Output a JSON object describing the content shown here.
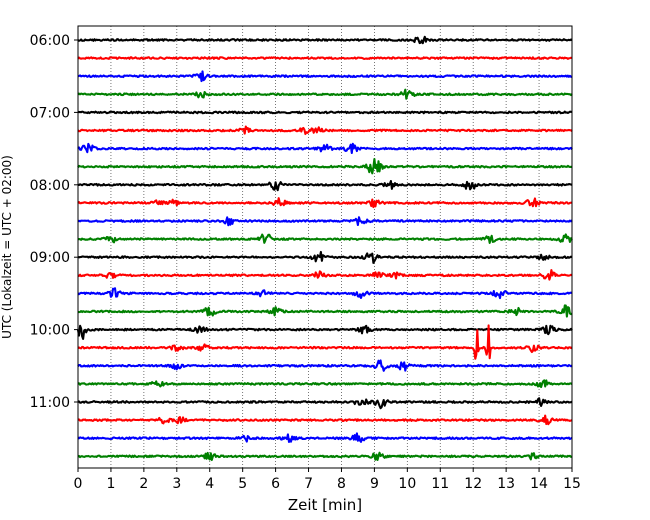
{
  "chart_data": {
    "type": "line",
    "title": "",
    "xlabel": "Zeit  [min]",
    "ylabel": "UTC (Lokalzeit = UTC + 02:00)",
    "xlim": [
      0,
      15
    ],
    "x_ticks": [
      0,
      1,
      2,
      3,
      4,
      5,
      6,
      7,
      8,
      9,
      10,
      11,
      12,
      13,
      14,
      15
    ],
    "grid": "vertical dotted",
    "trace_interval_minutes": 15,
    "y_ticks": [
      "06:00",
      "07:00",
      "08:00",
      "09:00",
      "10:00",
      "11:00"
    ],
    "series_colors": [
      "#000000",
      "#ff0000",
      "#0000ff",
      "#008000"
    ],
    "rows": [
      {
        "start": "06:00",
        "events": [
          {
            "t": 10.4,
            "a": 0.5
          }
        ]
      },
      {
        "start": "06:15",
        "events": []
      },
      {
        "start": "06:30",
        "events": [
          {
            "t": 3.7,
            "a": 0.6
          }
        ]
      },
      {
        "start": "06:45",
        "events": [
          {
            "t": 3.7,
            "a": 0.4
          },
          {
            "t": 10.0,
            "a": 0.5
          }
        ]
      },
      {
        "start": "07:00",
        "events": []
      },
      {
        "start": "07:15",
        "events": [
          {
            "t": 5.1,
            "a": 0.4
          },
          {
            "t": 6.9,
            "a": 0.3
          },
          {
            "t": 7.3,
            "a": 0.3
          }
        ]
      },
      {
        "start": "07:30",
        "events": [
          {
            "t": 0.3,
            "a": 0.5
          },
          {
            "t": 7.5,
            "a": 0.4
          },
          {
            "t": 8.3,
            "a": 0.6
          }
        ]
      },
      {
        "start": "07:45",
        "events": [
          {
            "t": 8.9,
            "a": 0.6
          },
          {
            "t": 9.1,
            "a": 0.5
          }
        ]
      },
      {
        "start": "08:00",
        "events": [
          {
            "t": 6.0,
            "a": 0.6
          },
          {
            "t": 9.5,
            "a": 0.4
          },
          {
            "t": 11.9,
            "a": 0.6
          }
        ]
      },
      {
        "start": "08:15",
        "events": [
          {
            "t": 2.4,
            "a": 0.3
          },
          {
            "t": 2.9,
            "a": 0.3
          },
          {
            "t": 6.1,
            "a": 0.5
          },
          {
            "t": 9.0,
            "a": 0.4
          },
          {
            "t": 13.8,
            "a": 0.5
          }
        ]
      },
      {
        "start": "08:30",
        "events": [
          {
            "t": 4.6,
            "a": 0.4
          },
          {
            "t": 8.6,
            "a": 0.5
          }
        ]
      },
      {
        "start": "08:45",
        "events": [
          {
            "t": 1.0,
            "a": 0.4
          },
          {
            "t": 5.7,
            "a": 0.6
          },
          {
            "t": 12.5,
            "a": 0.4
          },
          {
            "t": 14.8,
            "a": 0.5
          }
        ]
      },
      {
        "start": "09:00",
        "events": [
          {
            "t": 7.3,
            "a": 0.6
          },
          {
            "t": 8.9,
            "a": 0.7
          },
          {
            "t": 14.1,
            "a": 0.4
          }
        ]
      },
      {
        "start": "09:15",
        "events": [
          {
            "t": 1.0,
            "a": 0.5
          },
          {
            "t": 7.3,
            "a": 0.4
          },
          {
            "t": 9.1,
            "a": 0.3
          },
          {
            "t": 9.6,
            "a": 0.3
          },
          {
            "t": 14.3,
            "a": 0.6
          }
        ]
      },
      {
        "start": "09:30",
        "events": [
          {
            "t": 1.1,
            "a": 0.6
          },
          {
            "t": 5.6,
            "a": 0.3
          },
          {
            "t": 8.6,
            "a": 0.5
          },
          {
            "t": 12.8,
            "a": 0.5
          }
        ]
      },
      {
        "start": "09:45",
        "events": [
          {
            "t": 4.0,
            "a": 0.5
          },
          {
            "t": 6.0,
            "a": 0.4
          },
          {
            "t": 13.3,
            "a": 0.4
          },
          {
            "t": 14.8,
            "a": 0.8
          }
        ]
      },
      {
        "start": "10:00",
        "events": [
          {
            "t": 0.15,
            "a": 1.0
          },
          {
            "t": 3.7,
            "a": 0.4
          },
          {
            "t": 8.7,
            "a": 0.4
          },
          {
            "t": 14.3,
            "a": 0.5
          }
        ]
      },
      {
        "start": "10:15",
        "events": [
          {
            "t": 3.0,
            "a": 0.3
          },
          {
            "t": 3.8,
            "a": 0.3
          },
          {
            "t": 12.1,
            "a": 3.0
          },
          {
            "t": 12.45,
            "a": 3.0
          },
          {
            "t": 13.8,
            "a": 0.4
          }
        ]
      },
      {
        "start": "10:30",
        "events": [
          {
            "t": 3.0,
            "a": 0.3
          },
          {
            "t": 9.2,
            "a": 0.6
          },
          {
            "t": 9.9,
            "a": 0.5
          }
        ]
      },
      {
        "start": "10:45",
        "events": [
          {
            "t": 2.4,
            "a": 0.4
          },
          {
            "t": 14.1,
            "a": 0.5
          }
        ]
      },
      {
        "start": "11:00",
        "events": [
          {
            "t": 8.6,
            "a": 0.5
          },
          {
            "t": 9.2,
            "a": 0.6
          },
          {
            "t": 14.0,
            "a": 0.4
          }
        ]
      },
      {
        "start": "11:15",
        "events": [
          {
            "t": 2.6,
            "a": 0.3
          },
          {
            "t": 3.1,
            "a": 0.4
          },
          {
            "t": 14.2,
            "a": 0.5
          }
        ]
      },
      {
        "start": "11:30",
        "events": [
          {
            "t": 5.1,
            "a": 0.3
          },
          {
            "t": 6.4,
            "a": 0.4
          },
          {
            "t": 8.5,
            "a": 0.5
          }
        ]
      },
      {
        "start": "11:45",
        "events": [
          {
            "t": 4.0,
            "a": 0.4
          },
          {
            "t": 9.1,
            "a": 0.4
          },
          {
            "t": 13.8,
            "a": 0.4
          }
        ]
      }
    ]
  }
}
